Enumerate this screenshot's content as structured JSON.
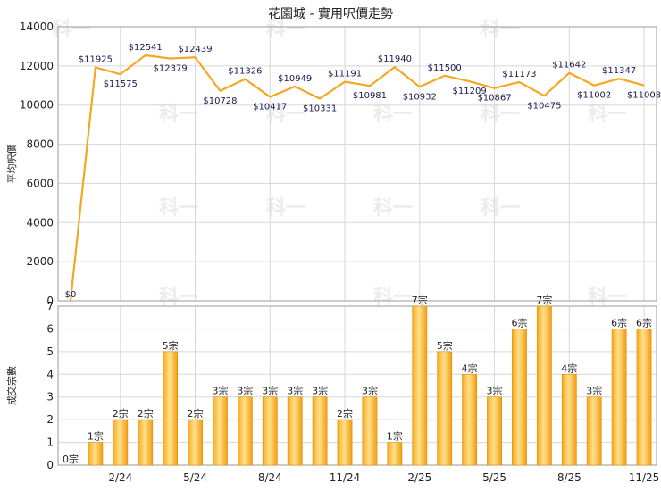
{
  "chart_data": [
    {
      "type": "line",
      "title": "花園城 - 實用呎價走勢",
      "ylabel": "平均呎價",
      "ylim": [
        0,
        14000
      ],
      "yticks": [
        0,
        2000,
        4000,
        6000,
        8000,
        10000,
        12000,
        14000
      ],
      "grid": true,
      "color": "#f5a623",
      "series": [
        {
          "values": [
            0,
            11925,
            11575,
            12541,
            12379,
            12439,
            10728,
            11326,
            10417,
            10949,
            10331,
            11191,
            10981,
            11940,
            10932,
            11500,
            11209,
            10867,
            11173,
            10475,
            11642,
            11002,
            11347,
            11008
          ],
          "labels": [
            "$0",
            "$11925",
            "$11575",
            "$12541",
            "$12379",
            "$12439",
            "$10728",
            "$11326",
            "$10417",
            "$10949",
            "$10331",
            "$11191",
            "$10981",
            "$11940",
            "$10932",
            "$11500",
            "$11209",
            "$10867",
            "$11173",
            "$10475",
            "$11642",
            "$11002",
            "$11347",
            "$11008"
          ]
        }
      ]
    },
    {
      "type": "bar",
      "ylabel": "成交宗數",
      "ylim": [
        0,
        7
      ],
      "yticks": [
        0,
        1,
        2,
        3,
        4,
        5,
        6,
        7
      ],
      "grid": true,
      "color": "#f5a623",
      "xtick_labels": [
        "2/24",
        "5/24",
        "8/24",
        "11/24",
        "2/25",
        "5/25",
        "8/25",
        "11/25"
      ],
      "xtick_indices": [
        2,
        5,
        8,
        11,
        14,
        17,
        20,
        23
      ],
      "values": [
        0,
        1,
        2,
        2,
        5,
        2,
        3,
        3,
        3,
        3,
        3,
        2,
        3,
        1,
        7,
        5,
        4,
        3,
        6,
        7,
        4,
        3,
        6,
        6
      ],
      "labels": [
        "0宗",
        "1宗",
        "2宗",
        "2宗",
        "5宗",
        "2宗",
        "3宗",
        "3宗",
        "3宗",
        "3宗",
        "3宗",
        "2宗",
        "3宗",
        "1宗",
        "7宗",
        "5宗",
        "4宗",
        "3宗",
        "6宗",
        "7宗",
        "4宗",
        "3宗",
        "6宗",
        "6宗"
      ]
    }
  ],
  "watermark": "科一"
}
